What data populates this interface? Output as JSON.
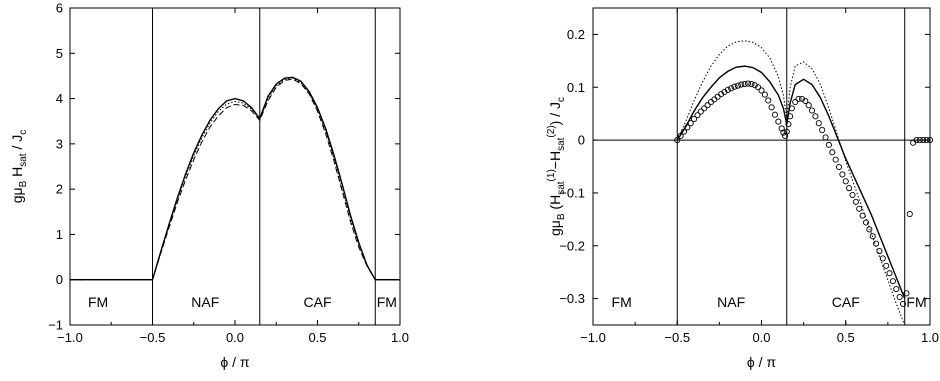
{
  "chart_data": [
    {
      "type": "line",
      "xlabel": "ϕ / π",
      "ylabel_parts": [
        "gμ",
        "B",
        " H",
        "sat",
        " / J",
        "c"
      ],
      "xlim": [
        -1.0,
        1.0
      ],
      "ylim": [
        -1,
        6
      ],
      "xticks": [
        -1.0,
        -0.5,
        0.0,
        0.5,
        1.0
      ],
      "xtick_labels": [
        "−1.0",
        "−0.5",
        "0.0",
        "0.5",
        "1.0"
      ],
      "yticks": [
        -1,
        0,
        1,
        2,
        3,
        4,
        5,
        6
      ],
      "ytick_labels": [
        "−1",
        "0",
        "1",
        "2",
        "3",
        "4",
        "5",
        "6"
      ],
      "vlines": [
        -0.5,
        0.15,
        0.85
      ],
      "regions": [
        {
          "label": "FM",
          "x": -0.83
        },
        {
          "label": "NAF",
          "x": -0.18
        },
        {
          "label": "CAF",
          "x": 0.5
        },
        {
          "label": "FM",
          "x": 0.92
        }
      ],
      "series": [
        {
          "style": "solid",
          "x": [
            -1,
            -0.5,
            -0.45,
            -0.4,
            -0.35,
            -0.3,
            -0.25,
            -0.2,
            -0.15,
            -0.1,
            -0.05,
            0,
            0.05,
            0.1,
            0.15,
            0.2,
            0.25,
            0.3,
            0.35,
            0.4,
            0.45,
            0.5,
            0.55,
            0.6,
            0.65,
            0.7,
            0.75,
            0.8,
            0.85,
            0.9,
            1.0
          ],
          "y": [
            0,
            0,
            0.62,
            1.22,
            1.8,
            2.33,
            2.8,
            3.2,
            3.53,
            3.78,
            3.95,
            4.0,
            3.95,
            3.8,
            3.56,
            4.05,
            4.32,
            4.45,
            4.47,
            4.38,
            4.15,
            3.8,
            3.33,
            2.75,
            2.1,
            1.42,
            0.82,
            0.32,
            0,
            0,
            0
          ]
        },
        {
          "style": "dashed",
          "x": [
            -1,
            -0.5,
            -0.45,
            -0.4,
            -0.35,
            -0.3,
            -0.25,
            -0.2,
            -0.15,
            -0.1,
            -0.05,
            0,
            0.05,
            0.1,
            0.15,
            0.2,
            0.25,
            0.3,
            0.35,
            0.4,
            0.45,
            0.5,
            0.55,
            0.6,
            0.65,
            0.7,
            0.75,
            0.8,
            0.85,
            0.9,
            1.0
          ],
          "y": [
            0,
            0,
            0.58,
            1.15,
            1.7,
            2.2,
            2.65,
            3.05,
            3.38,
            3.62,
            3.8,
            3.87,
            3.85,
            3.73,
            3.52,
            3.95,
            4.25,
            4.4,
            4.43,
            4.33,
            4.1,
            3.72,
            3.22,
            2.62,
            1.95,
            1.28,
            0.72,
            0.3,
            0,
            0,
            0
          ]
        },
        {
          "style": "dotted",
          "x": [
            -1,
            -0.5,
            -0.45,
            -0.4,
            -0.35,
            -0.3,
            -0.25,
            -0.2,
            -0.15,
            -0.1,
            -0.05,
            0,
            0.05,
            0.1,
            0.15,
            0.2,
            0.25,
            0.3,
            0.35,
            0.4,
            0.45,
            0.5,
            0.55,
            0.6,
            0.65,
            0.7,
            0.75,
            0.8,
            0.85,
            0.9,
            1.0
          ],
          "y": [
            0,
            0,
            0.6,
            1.2,
            1.76,
            2.28,
            2.74,
            3.14,
            3.47,
            3.72,
            3.88,
            3.94,
            3.9,
            3.77,
            3.54,
            4.0,
            4.28,
            4.42,
            4.45,
            4.35,
            4.12,
            3.76,
            3.28,
            2.68,
            2.02,
            1.35,
            0.78,
            0.31,
            0,
            0,
            0
          ]
        }
      ]
    },
    {
      "type": "line",
      "xlabel": "ϕ / π",
      "ylabel_parts": [
        "gμ",
        "B",
        " (H",
        "sat",
        "(1)",
        "−H",
        "sat",
        "(2)",
        ") / J",
        "c"
      ],
      "xlim": [
        -1.0,
        1.0
      ],
      "ylim": [
        -0.35,
        0.25
      ],
      "xticks": [
        -1.0,
        -0.5,
        0.0,
        0.5,
        1.0
      ],
      "xtick_labels": [
        "−1.0",
        "−0.5",
        "0.0",
        "0.5",
        "1.0"
      ],
      "yticks": [
        -0.3,
        -0.2,
        -0.1,
        0,
        0.1,
        0.2
      ],
      "ytick_labels": [
        "−0.3",
        "−0.2",
        "−0.1",
        "0",
        "0.1",
        "0.2"
      ],
      "hline": 0,
      "vlines": [
        -0.5,
        0.15,
        0.85
      ],
      "regions": [
        {
          "label": "FM",
          "x": -0.83
        },
        {
          "label": "NAF",
          "x": -0.18
        },
        {
          "label": "CAF",
          "x": 0.5
        },
        {
          "label": "FM",
          "x": 0.92
        }
      ],
      "series": [
        {
          "style": "solid",
          "x": [
            -0.5,
            -0.45,
            -0.4,
            -0.35,
            -0.3,
            -0.25,
            -0.2,
            -0.15,
            -0.1,
            -0.05,
            0,
            0.05,
            0.1,
            0.13,
            0.15,
            0.17,
            0.2,
            0.25,
            0.3,
            0.35,
            0.4,
            0.45,
            0.5,
            0.55,
            0.6,
            0.65,
            0.7,
            0.75,
            0.8,
            0.85
          ],
          "y": [
            0,
            0.025,
            0.055,
            0.08,
            0.1,
            0.118,
            0.13,
            0.138,
            0.14,
            0.137,
            0.128,
            0.11,
            0.085,
            0.06,
            0.03,
            0.07,
            0.105,
            0.115,
            0.105,
            0.08,
            0.045,
            0.005,
            -0.035,
            -0.07,
            -0.105,
            -0.14,
            -0.18,
            -0.22,
            -0.26,
            -0.3
          ]
        },
        {
          "style": "dotted",
          "x": [
            -0.5,
            -0.45,
            -0.4,
            -0.35,
            -0.3,
            -0.25,
            -0.2,
            -0.15,
            -0.1,
            -0.05,
            0,
            0.05,
            0.1,
            0.13,
            0.15,
            0.17,
            0.2,
            0.25,
            0.3,
            0.35,
            0.4,
            0.45,
            0.5,
            0.55,
            0.6,
            0.65,
            0.7,
            0.75,
            0.8,
            0.85
          ],
          "y": [
            0,
            0.035,
            0.075,
            0.11,
            0.14,
            0.162,
            0.178,
            0.186,
            0.188,
            0.185,
            0.175,
            0.155,
            0.12,
            0.085,
            0.04,
            0.1,
            0.14,
            0.148,
            0.135,
            0.105,
            0.06,
            0.01,
            -0.04,
            -0.085,
            -0.13,
            -0.175,
            -0.22,
            -0.265,
            -0.31,
            -0.35
          ]
        },
        {
          "style": "circles",
          "x": [
            -0.5,
            -0.48,
            -0.46,
            -0.44,
            -0.42,
            -0.4,
            -0.38,
            -0.36,
            -0.34,
            -0.32,
            -0.3,
            -0.28,
            -0.26,
            -0.24,
            -0.22,
            -0.2,
            -0.18,
            -0.16,
            -0.14,
            -0.12,
            -0.1,
            -0.08,
            -0.06,
            -0.04,
            -0.02,
            0.0,
            0.02,
            0.04,
            0.06,
            0.08,
            0.1,
            0.12,
            0.13,
            0.14,
            0.15,
            0.16,
            0.17,
            0.18,
            0.2,
            0.22,
            0.24,
            0.26,
            0.28,
            0.3,
            0.32,
            0.34,
            0.36,
            0.38,
            0.4,
            0.42,
            0.44,
            0.46,
            0.48,
            0.5,
            0.52,
            0.54,
            0.56,
            0.58,
            0.6,
            0.62,
            0.64,
            0.66,
            0.68,
            0.7,
            0.72,
            0.74,
            0.76,
            0.78,
            0.8,
            0.82,
            0.84,
            0.86,
            0.88,
            0.9,
            0.92,
            0.94,
            0.96,
            0.98,
            1.0
          ],
          "y": [
            0.0,
            0.008,
            0.016,
            0.024,
            0.032,
            0.04,
            0.047,
            0.054,
            0.06,
            0.066,
            0.072,
            0.077,
            0.082,
            0.087,
            0.091,
            0.095,
            0.098,
            0.101,
            0.103,
            0.105,
            0.106,
            0.107,
            0.106,
            0.104,
            0.1,
            0.094,
            0.086,
            0.075,
            0.062,
            0.048,
            0.035,
            0.022,
            0.014,
            0.008,
            0.016,
            0.03,
            0.045,
            0.06,
            0.072,
            0.078,
            0.078,
            0.074,
            0.066,
            0.056,
            0.045,
            0.032,
            0.019,
            0.005,
            -0.009,
            -0.023,
            -0.037,
            -0.051,
            -0.065,
            -0.078,
            -0.091,
            -0.104,
            -0.117,
            -0.13,
            -0.143,
            -0.156,
            -0.169,
            -0.182,
            -0.196,
            -0.21,
            -0.224,
            -0.238,
            -0.252,
            -0.267,
            -0.282,
            -0.297,
            -0.31,
            -0.29,
            -0.14,
            -0.005,
            0.0,
            0.0,
            0.0,
            0.0,
            0.0
          ]
        }
      ]
    }
  ]
}
